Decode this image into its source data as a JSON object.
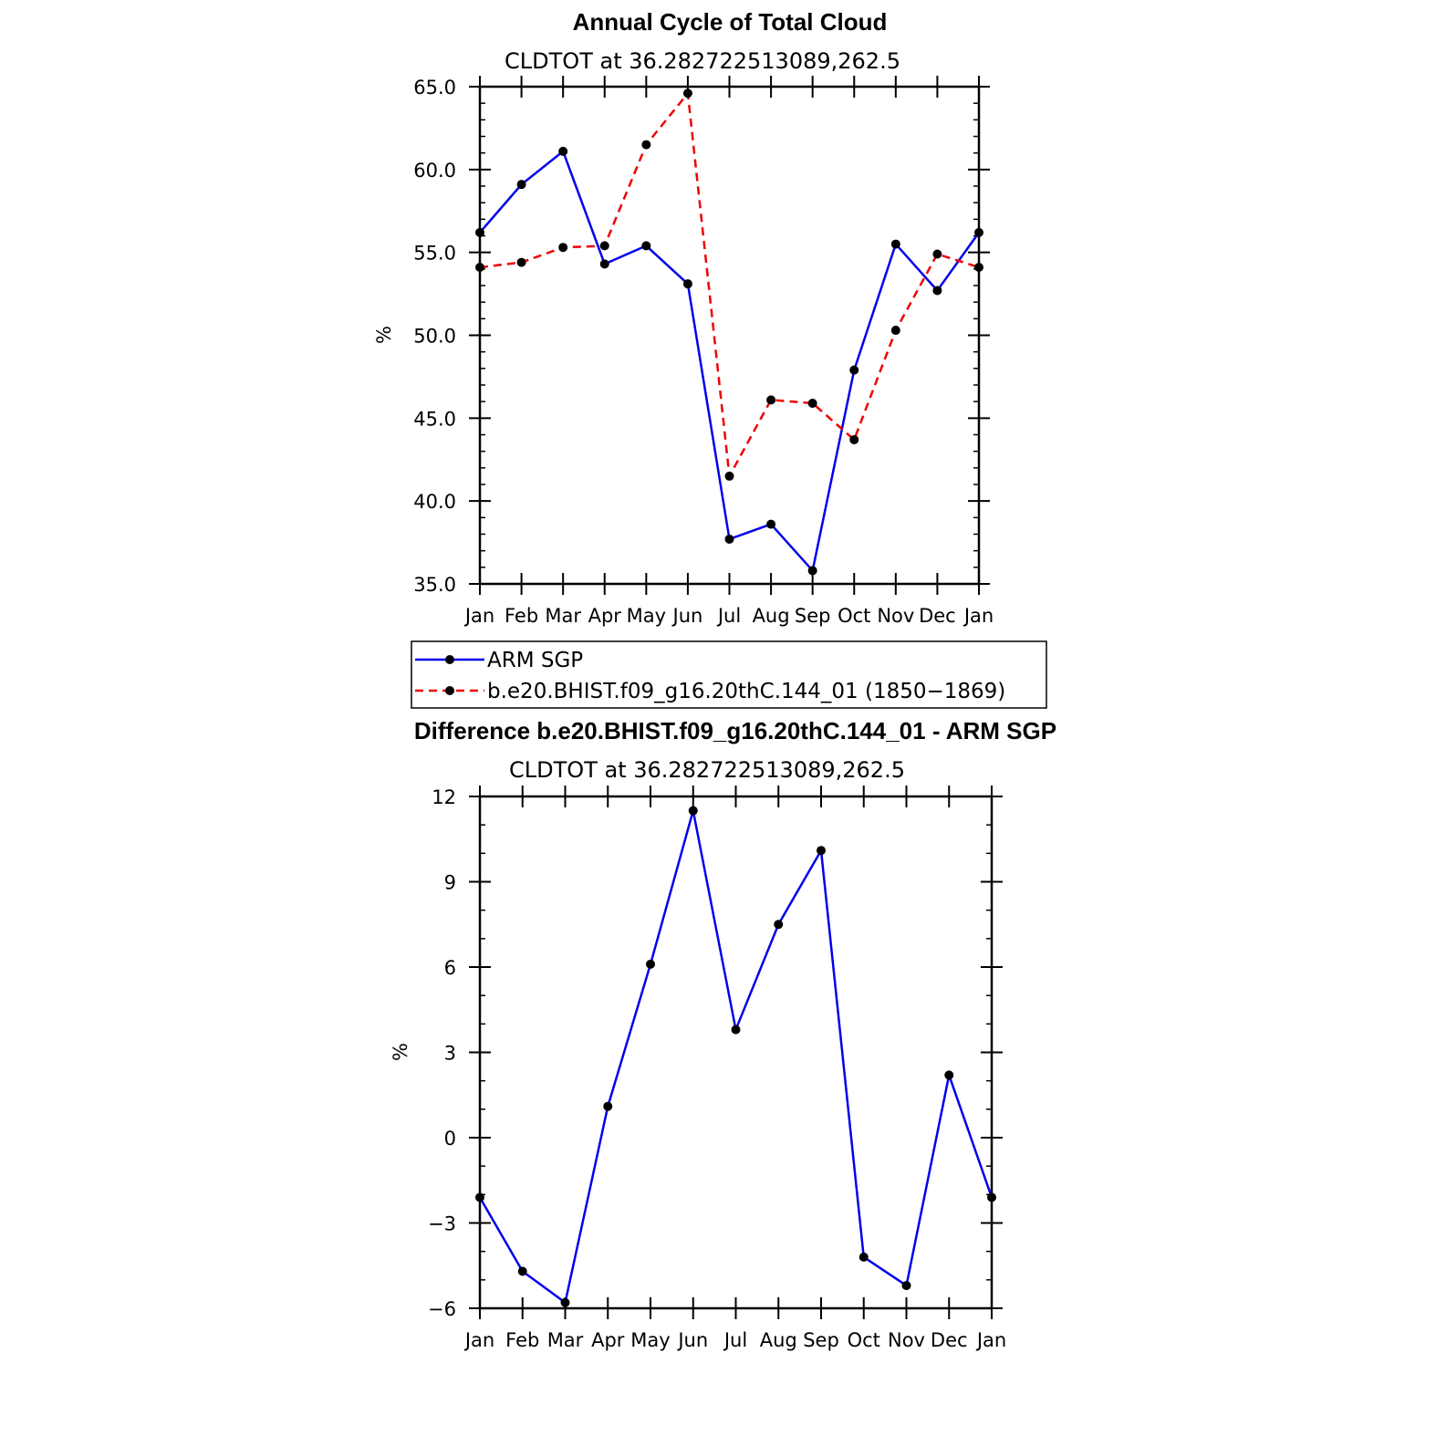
{
  "colors": {
    "series_arm": "#0000ee",
    "series_model": "#ee0000",
    "marker": "#000000",
    "axis": "#000000"
  },
  "chart_data": [
    {
      "type": "line",
      "title": "Annual Cycle of Total Cloud",
      "subtitle": "CLDTOT at 36.282722513089,262.5",
      "xlabel": "",
      "ylabel": "%",
      "categories": [
        "Jan",
        "Feb",
        "Mar",
        "Apr",
        "May",
        "Jun",
        "Jul",
        "Aug",
        "Sep",
        "Oct",
        "Nov",
        "Dec",
        "Jan"
      ],
      "ylim": [
        35,
        65
      ],
      "yticks": [
        35,
        40,
        45,
        50,
        55,
        60,
        65
      ],
      "ytick_labels": [
        "35.0",
        "40.0",
        "45.0",
        "50.0",
        "55.0",
        "60.0",
        "65.0"
      ],
      "series": [
        {
          "name": "ARM SGP",
          "style": "solid",
          "color": "#0000ee",
          "values": [
            56.2,
            59.1,
            61.1,
            54.3,
            55.4,
            53.1,
            37.7,
            38.6,
            35.8,
            47.9,
            55.5,
            52.7,
            56.2
          ]
        },
        {
          "name": "b.e20.BHIST.f09_g16.20thC.144_01 (1850−1869)",
          "style": "dashed",
          "color": "#ee0000",
          "values": [
            54.1,
            54.4,
            55.3,
            55.4,
            61.5,
            64.6,
            41.5,
            46.1,
            45.9,
            43.7,
            50.3,
            54.9,
            54.1
          ]
        }
      ],
      "legend": "below"
    },
    {
      "type": "line",
      "title": "Difference b.e20.BHIST.f09_g16.20thC.144_01 - ARM SGP",
      "subtitle": "CLDTOT at 36.282722513089,262.5",
      "xlabel": "",
      "ylabel": "%",
      "categories": [
        "Jan",
        "Feb",
        "Mar",
        "Apr",
        "May",
        "Jun",
        "Jul",
        "Aug",
        "Sep",
        "Oct",
        "Nov",
        "Dec",
        "Jan"
      ],
      "ylim": [
        -6,
        12
      ],
      "yticks": [
        -6,
        -3,
        0,
        3,
        6,
        9,
        12
      ],
      "ytick_labels": [
        "−6",
        "−3",
        "0",
        "3",
        "6",
        "9",
        "12"
      ],
      "series": [
        {
          "name": "Difference",
          "style": "solid",
          "color": "#0000ee",
          "values": [
            -2.1,
            -4.7,
            -5.8,
            1.1,
            6.1,
            11.5,
            3.8,
            7.5,
            10.1,
            -4.2,
            -5.2,
            2.2,
            -2.1
          ]
        }
      ]
    }
  ]
}
